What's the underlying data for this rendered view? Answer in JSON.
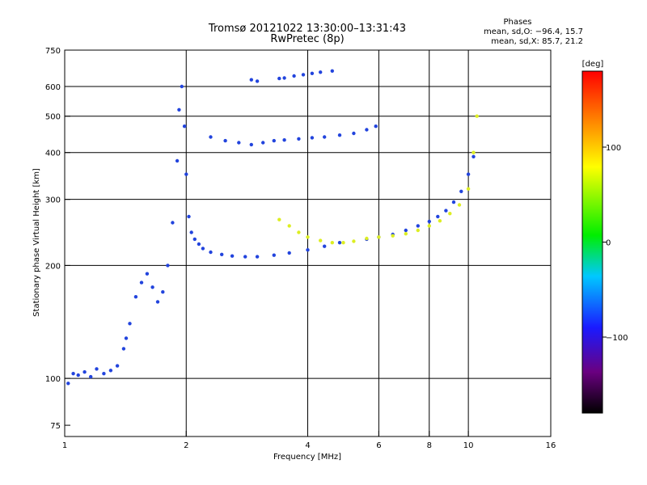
{
  "header": {
    "title_line1": "Tromsø 20121022 13:30:00–13:31:43",
    "title_line2": "RwPretec (8p)"
  },
  "phases": {
    "heading": "Phases",
    "line_o": "mean, sd,O: −96.4, 15.7",
    "line_x": "mean, sd,X:  85.7, 21.2"
  },
  "colorbar": {
    "label": "[deg]",
    "ticks": [
      "100",
      "0",
      "−100"
    ],
    "tick_values": [
      100,
      0,
      -100
    ],
    "range": [
      -180,
      180
    ]
  },
  "chart_data": {
    "type": "scatter",
    "title": "Tromsø 20121022 13:30:00–13:31:43",
    "subtitle": "RwPretec (8p)",
    "xlabel": "Frequency [MHz]",
    "ylabel": "Stationary phase Virtual Height [km]",
    "x_scale": "log",
    "y_scale": "log",
    "xlim": [
      1,
      16
    ],
    "ylim": [
      70,
      750
    ],
    "x_ticks": [
      1,
      2,
      4,
      6,
      8,
      10,
      16
    ],
    "x_tick_labels": [
      "1",
      "2",
      "4",
      "6",
      "8",
      "10",
      "16"
    ],
    "y_ticks": [
      75,
      100,
      200,
      300,
      400,
      500,
      600,
      750
    ],
    "y_tick_labels": [
      "75",
      "100",
      "200",
      "300",
      "400",
      "500",
      "600",
      "750"
    ],
    "grid": true,
    "color_encodes": "phase [deg]",
    "series": [
      {
        "color": "#2244dd",
        "phase": -100,
        "x": [
          1.02,
          1.05,
          1.08,
          1.12,
          1.16,
          1.2,
          1.25,
          1.3,
          1.35,
          1.4,
          1.42,
          1.45,
          1.5,
          1.55,
          1.6,
          1.65,
          1.7,
          1.75,
          1.8,
          1.85,
          1.9,
          1.92,
          1.95,
          1.98,
          2.0,
          2.03,
          2.06,
          2.1,
          2.15,
          2.2,
          2.3,
          2.45,
          2.6,
          2.8,
          3.0,
          3.3,
          3.6,
          4.0,
          4.4,
          4.8
        ],
        "y": [
          97,
          103,
          102,
          104,
          101,
          106,
          103,
          105,
          108,
          120,
          128,
          140,
          165,
          180,
          190,
          175,
          160,
          170,
          200,
          260,
          380,
          520,
          600,
          470,
          350,
          270,
          245,
          235,
          228,
          222,
          217,
          214,
          212,
          211,
          211,
          213,
          216,
          220,
          225,
          230
        ]
      },
      {
        "color": "#2244dd",
        "phase": -100,
        "x": [
          2.3,
          2.5,
          2.7,
          2.9,
          3.1,
          3.3,
          3.5,
          3.8,
          4.1,
          4.4,
          4.8,
          5.2,
          5.6,
          5.9
        ],
        "y": [
          440,
          430,
          425,
          420,
          425,
          430,
          432,
          435,
          438,
          440,
          445,
          450,
          460,
          470
        ]
      },
      {
        "color": "#2244dd",
        "phase": -100,
        "x": [
          2.9,
          3.0,
          3.4,
          3.5,
          3.7,
          3.9,
          4.1,
          4.3,
          4.6
        ],
        "y": [
          625,
          620,
          630,
          632,
          640,
          645,
          650,
          655,
          660
        ]
      },
      {
        "color": "#2244dd",
        "phase": -100,
        "x": [
          5.6,
          6.0,
          6.5,
          7.0,
          7.5,
          8.0,
          8.4,
          8.8,
          9.2,
          9.6,
          10.0,
          10.3
        ],
        "y": [
          235,
          238,
          242,
          248,
          255,
          262,
          270,
          280,
          295,
          315,
          350,
          390
        ]
      },
      {
        "color": "#ddee22",
        "phase": 100,
        "x": [
          3.4,
          3.6,
          3.8,
          4.0,
          4.3,
          4.6,
          4.9,
          5.2,
          5.6,
          6.0,
          6.5,
          7.0,
          7.5,
          8.0,
          8.5,
          9.0,
          9.5,
          10.0,
          10.3,
          10.5
        ],
        "y": [
          265,
          255,
          245,
          238,
          233,
          230,
          230,
          232,
          236,
          238,
          240,
          243,
          248,
          255,
          263,
          275,
          290,
          320,
          400,
          500
        ]
      }
    ]
  }
}
